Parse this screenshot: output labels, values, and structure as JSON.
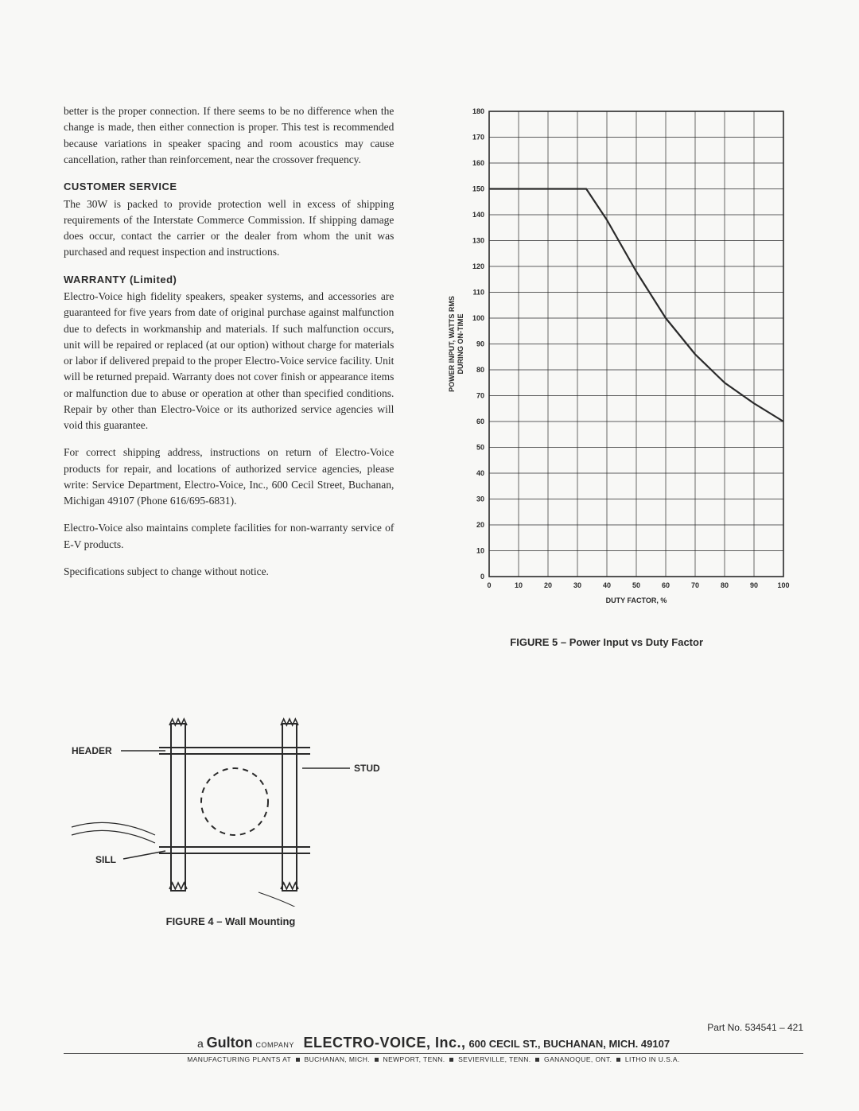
{
  "text": {
    "intro": "better is the proper connection. If there seems to be no difference when the change is made, then either connection is proper. This test is recommended because variations in speaker spacing and room acoustics may cause cancellation, rather than reinforcement, near the crossover frequency.",
    "cs_head": "CUSTOMER SERVICE",
    "cs_body": "The 30W is packed to provide protection well in excess of shipping requirements of the Interstate Commerce Commission. If shipping damage does occur, contact the carrier or the dealer from whom the unit was purchased and request inspection and instructions.",
    "war_head": "WARRANTY (Limited)",
    "war_p1": "Electro-Voice high fidelity speakers, speaker systems, and accessories are guaranteed for five years from date of original purchase against malfunction due to defects in workmanship and materials. If such malfunction occurs, unit will be repaired or replaced (at our option) without charge for materials or labor if delivered prepaid to the proper Electro-Voice service facility. Unit will be returned prepaid. Warranty does not cover finish or appearance items or malfunction due to abuse or operation at other than specified conditions. Repair by other than Electro-Voice or its authorized service agencies will void this guarantee.",
    "war_p2": "For correct shipping address, instructions on return of Electro-Voice products for repair, and locations of authorized service agencies, please write: Service Department, Electro-Voice, Inc., 600 Cecil Street, Buchanan, Michigan 49107 (Phone 616/695-6831).",
    "war_p3": "Electro-Voice also maintains complete facilities for non-warranty service of E-V products.",
    "spec_note": "Specifications subject to change without notice."
  },
  "figure4": {
    "caption": "FIGURE 4 – Wall Mounting",
    "labels": {
      "header": "HEADER",
      "stud": "STUD",
      "sill": "SILL"
    },
    "colors": {
      "line": "#2a2a2a",
      "arrow": "#2a2a2a"
    }
  },
  "figure5": {
    "type": "line",
    "caption": "FIGURE 5 – Power Input vs Duty Factor",
    "xlabel": "DUTY FACTOR, %",
    "ylabel": "POWER INPUT, WATTS RMS\nDURING ON-TIME",
    "xlim": [
      0,
      100
    ],
    "ylim": [
      0,
      180
    ],
    "xtick_step": 10,
    "ytick_step": 10,
    "tick_fontsize": 9,
    "label_fontsize": 9,
    "line_color": "#2a2a2a",
    "grid_color": "#2a2a2a",
    "background_color": "#f8f8f6",
    "line_width": 2.2,
    "grid_width": 0.7,
    "curve": [
      {
        "x": 0,
        "y": 150
      },
      {
        "x": 33,
        "y": 150
      },
      {
        "x": 40,
        "y": 138
      },
      {
        "x": 50,
        "y": 118
      },
      {
        "x": 60,
        "y": 100
      },
      {
        "x": 70,
        "y": 86
      },
      {
        "x": 80,
        "y": 75
      },
      {
        "x": 90,
        "y": 67
      },
      {
        "x": 100,
        "y": 60
      }
    ]
  },
  "footer": {
    "partno": "Part No. 534541 – 421",
    "prefix_a": "a",
    "gulton": "Gulton",
    "company": "COMPANY",
    "ev": "ELECTRO-VOICE, Inc.,",
    "addr": "600 CECIL ST., BUCHANAN, MICH. 49107",
    "sub_prefix": "MANUFACTURING PLANTS AT",
    "plants": [
      "BUCHANAN, MICH.",
      "NEWPORT, TENN.",
      "SEVIERVILLE, TENN.",
      "GANANOQUE, ONT."
    ],
    "sub_suffix": "LITHO IN U.S.A."
  }
}
